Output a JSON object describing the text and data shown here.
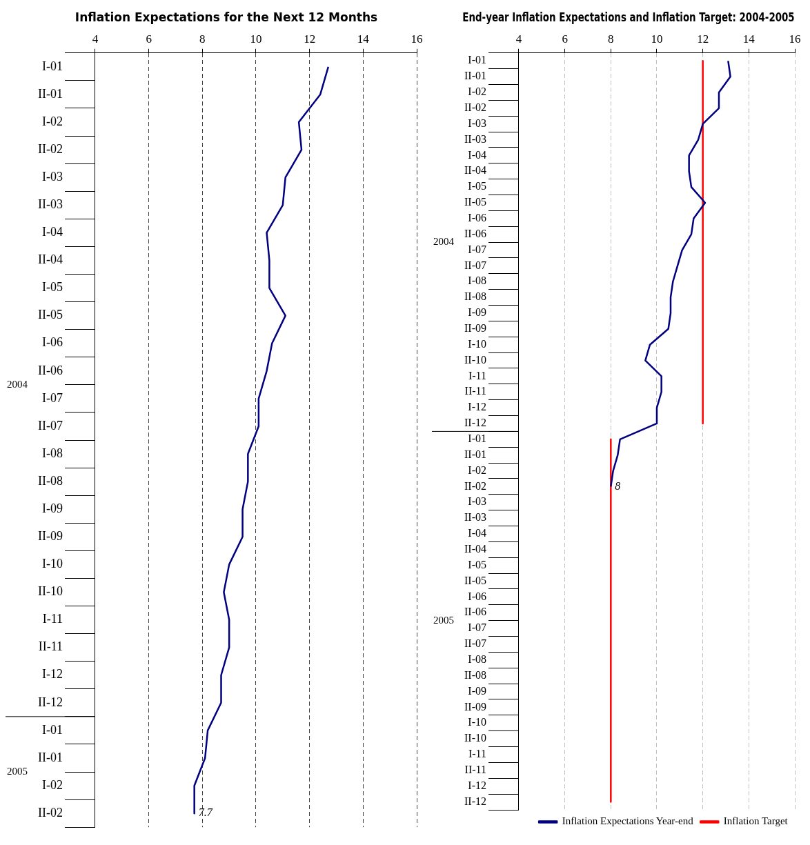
{
  "chart_data": [
    {
      "type": "line",
      "title": "Inflation Expectations for the Next 12 Months",
      "orientation": "horizontal",
      "categories": [
        "I-01",
        "II-01",
        "I-02",
        "II-02",
        "I-03",
        "II-03",
        "I-04",
        "II-04",
        "I-05",
        "II-05",
        "I-06",
        "II-06",
        "I-07",
        "II-07",
        "I-08",
        "II-08",
        "I-09",
        "II-09",
        "I-10",
        "II-10",
        "I-11",
        "II-11",
        "I-12",
        "II-12",
        "I-01",
        "II-01",
        "I-02",
        "II-02"
      ],
      "series": [
        {
          "color": "#000080",
          "values": [
            12.7,
            12.4,
            11.6,
            11.7,
            11.1,
            11.0,
            10.4,
            10.5,
            10.5,
            11.1,
            10.6,
            10.4,
            10.1,
            10.1,
            9.7,
            9.7,
            9.5,
            9.5,
            9.0,
            8.8,
            9.0,
            9.0,
            8.7,
            8.7,
            8.2,
            8.1,
            7.7,
            7.7
          ],
          "value_labels": [
            null,
            null,
            null,
            null,
            null,
            null,
            null,
            null,
            null,
            null,
            null,
            null,
            null,
            null,
            null,
            null,
            null,
            null,
            null,
            null,
            null,
            null,
            null,
            null,
            null,
            null,
            null,
            "7.7"
          ]
        }
      ],
      "xlim": [
        4,
        16
      ],
      "xticks": [
        4,
        6,
        8,
        10,
        12,
        14,
        16
      ],
      "grid": "x",
      "legend": false,
      "marker": "none",
      "line_style": "solid",
      "annotations": [
        "2004",
        "2005"
      ]
    },
    {
      "type": "line",
      "title": "End-year Inflation Expectations and Inflation Target: 2004-2005",
      "orientation": "horizontal",
      "categories": [
        "I-01",
        "II-01",
        "I-02",
        "II-02",
        "I-03",
        "II-03",
        "I-04",
        "II-04",
        "I-05",
        "II-05",
        "I-06",
        "II-06",
        "I-07",
        "II-07",
        "I-08",
        "II-08",
        "I-09",
        "II-09",
        "I-10",
        "II-10",
        "I-11",
        "II-11",
        "I-12",
        "II-12",
        "I-01",
        "II-01",
        "I-02",
        "II-02",
        "I-03",
        "II-03",
        "I-04",
        "II-04",
        "I-05",
        "II-05",
        "I-06",
        "II-06",
        "I-07",
        "II-07",
        "I-08",
        "II-08",
        "I-09",
        "II-09",
        "I-10",
        "II-10",
        "I-11",
        "II-11",
        "I-12",
        "II-12"
      ],
      "series": [
        {
          "name": "Inflation Expectations Year-end",
          "color": "#000080",
          "values": [
            13.1,
            13.2,
            12.7,
            12.7,
            12.0,
            11.8,
            11.4,
            11.4,
            11.5,
            12.1,
            11.6,
            11.5,
            11.1,
            10.9,
            10.7,
            10.6,
            10.6,
            10.5,
            9.7,
            9.5,
            10.2,
            10.2,
            10.0,
            10.0,
            8.4,
            8.3,
            8.1,
            8.0,
            null,
            null,
            null,
            null,
            null,
            null,
            null,
            null,
            null,
            null,
            null,
            null,
            null,
            null,
            null,
            null,
            null,
            null,
            null,
            null
          ],
          "value_labels": [
            null,
            null,
            null,
            null,
            null,
            null,
            null,
            null,
            null,
            null,
            null,
            null,
            null,
            null,
            null,
            null,
            null,
            null,
            null,
            null,
            null,
            null,
            null,
            null,
            null,
            null,
            null,
            "8",
            null,
            null,
            null,
            null,
            null,
            null,
            null,
            null,
            null,
            null,
            null,
            null,
            null,
            null,
            null,
            null,
            null,
            null,
            null,
            null
          ]
        },
        {
          "name": "Inflation Target",
          "color": "#ff0000",
          "values": [
            12,
            12,
            12,
            12,
            12,
            12,
            12,
            12,
            12,
            12,
            12,
            12,
            12,
            12,
            12,
            12,
            12,
            12,
            12,
            12,
            12,
            12,
            12,
            12,
            null,
            null,
            null,
            null,
            null,
            null,
            null,
            null,
            null,
            null,
            null,
            null,
            null,
            null,
            null,
            null,
            null,
            null,
            null,
            null,
            null,
            null,
            null,
            null
          ]
        },
        {
          "color": "#ff0000",
          "values": [
            null,
            null,
            null,
            null,
            null,
            null,
            null,
            null,
            null,
            null,
            null,
            null,
            null,
            null,
            null,
            null,
            null,
            null,
            null,
            null,
            null,
            null,
            null,
            null,
            8,
            8,
            8,
            8,
            8,
            8,
            8,
            8,
            8,
            8,
            8,
            8,
            8,
            8,
            8,
            8,
            8,
            8,
            8,
            8,
            8,
            8,
            8,
            8
          ]
        }
      ],
      "xlim": [
        4,
        16
      ],
      "xticks": [
        4,
        6,
        8,
        10,
        12,
        14,
        16
      ],
      "grid": "x",
      "legend": "bottom right",
      "marker": "none",
      "line_style": "solid",
      "annotations": [
        "2004",
        "2005"
      ]
    }
  ]
}
